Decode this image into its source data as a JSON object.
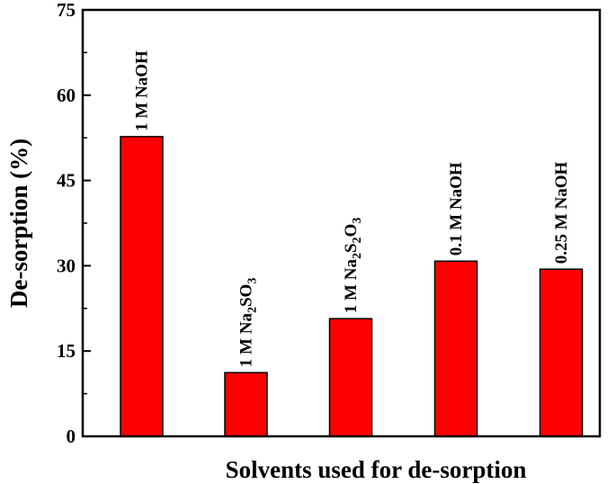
{
  "chart_data": {
    "type": "bar",
    "title": "",
    "xlabel": "Solvents used for de-sorption",
    "ylabel": "De-sorption (%)",
    "ylim": [
      0,
      75
    ],
    "yticks": [
      0,
      15,
      30,
      45,
      60,
      75
    ],
    "yticks_minor": [
      7.5,
      22.5,
      37.5,
      52.5,
      67.5
    ],
    "grid": false,
    "bar_color": "#ff0000",
    "bar_edge_color": "#000000",
    "categories": [
      {
        "text": "1 M NaOH"
      },
      {
        "text": "1 M Na2SO3",
        "parts": [
          [
            "1 M Na",
            ""
          ],
          [
            "2",
            "sub"
          ],
          [
            "SO",
            ""
          ],
          [
            "3",
            "sub"
          ]
        ]
      },
      {
        "text": "1 M Na2S2O3",
        "parts": [
          [
            "1 M Na",
            ""
          ],
          [
            "2",
            "sub"
          ],
          [
            "S",
            ""
          ],
          [
            "2",
            "sub"
          ],
          [
            "O",
            ""
          ],
          [
            "3",
            "sub"
          ]
        ]
      },
      {
        "text": "0.1 M NaOH"
      },
      {
        "text": "0.25 M NaOH"
      }
    ],
    "values": [
      52.7,
      11.2,
      20.7,
      30.8,
      29.4
    ]
  }
}
